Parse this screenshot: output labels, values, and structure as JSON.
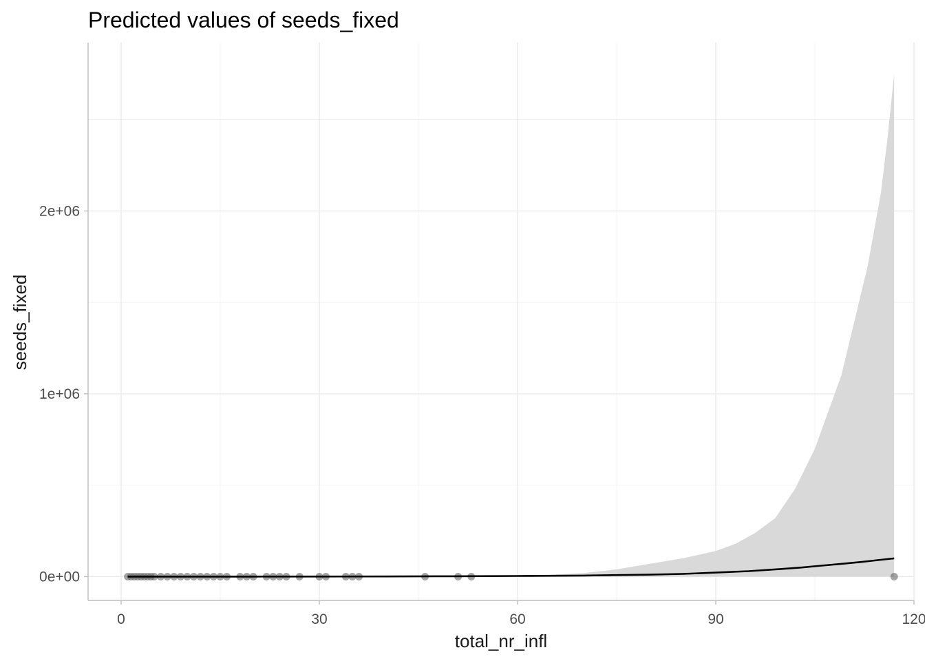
{
  "chart_data": {
    "type": "line",
    "title": "Predicted values of seeds_fixed",
    "xlabel": "total_nr_infl",
    "ylabel": "seeds_fixed",
    "xlim": [
      -5,
      120
    ],
    "ylim": [
      -130000,
      2920000
    ],
    "x_ticks": [
      0,
      30,
      60,
      90,
      120
    ],
    "x_tick_labels": [
      "0",
      "30",
      "60",
      "90",
      "120"
    ],
    "x_minor_ticks": [
      15,
      45,
      75,
      105
    ],
    "y_ticks": [
      0,
      1000000,
      2000000
    ],
    "y_tick_labels": [
      "0e+00",
      "1e+06",
      "2e+06"
    ],
    "y_minor_ticks": [
      500000,
      1500000,
      2500000
    ],
    "grid": true,
    "legend": "none",
    "colors": {
      "line": "#000000",
      "ribbon": "#d9d9d9",
      "points": "#5a5a5a",
      "grid": "#ebebeb",
      "axis": "#bdbdbd"
    },
    "series": [
      {
        "type": "line",
        "x": [
          1,
          10,
          20,
          30,
          40,
          50,
          60,
          70,
          80,
          85,
          90,
          95,
          100,
          103,
          106,
          109,
          112,
          115,
          117
        ],
        "y": [
          100,
          200,
          400,
          700,
          1200,
          2000,
          3500,
          6000,
          11000,
          15000,
          22000,
          30000,
          42000,
          50000,
          60000,
          70000,
          80000,
          92000,
          100000
        ]
      },
      {
        "type": "ribbon",
        "x": [
          60,
          65,
          70,
          75,
          80,
          85,
          90,
          93,
          96,
          99,
          102,
          105,
          107,
          109,
          111,
          113,
          115,
          116,
          117
        ],
        "lower": [
          0,
          0,
          0,
          0,
          0,
          0,
          0,
          0,
          0,
          0,
          0,
          0,
          0,
          0,
          0,
          0,
          0,
          0,
          0
        ],
        "upper": [
          4000,
          10000,
          20000,
          40000,
          70000,
          100000,
          140000,
          180000,
          240000,
          320000,
          480000,
          700000,
          900000,
          1100000,
          1400000,
          1700000,
          2100000,
          2400000,
          2750000
        ]
      },
      {
        "type": "scatter",
        "x": [
          1,
          1.5,
          2,
          2.5,
          3,
          3.5,
          4,
          4.5,
          5,
          6,
          7,
          8,
          9,
          10,
          11,
          12,
          13,
          14,
          15,
          16,
          18,
          19,
          20,
          22,
          23,
          24,
          25,
          27,
          30,
          31,
          34,
          35,
          36,
          46,
          51,
          53,
          117
        ],
        "y": [
          0,
          0,
          0,
          0,
          0,
          0,
          0,
          0,
          0,
          0,
          0,
          0,
          0,
          0,
          0,
          0,
          0,
          0,
          0,
          0,
          0,
          0,
          0,
          0,
          0,
          0,
          0,
          0,
          0,
          0,
          0,
          0,
          0,
          0,
          0,
          0,
          0
        ]
      }
    ]
  }
}
